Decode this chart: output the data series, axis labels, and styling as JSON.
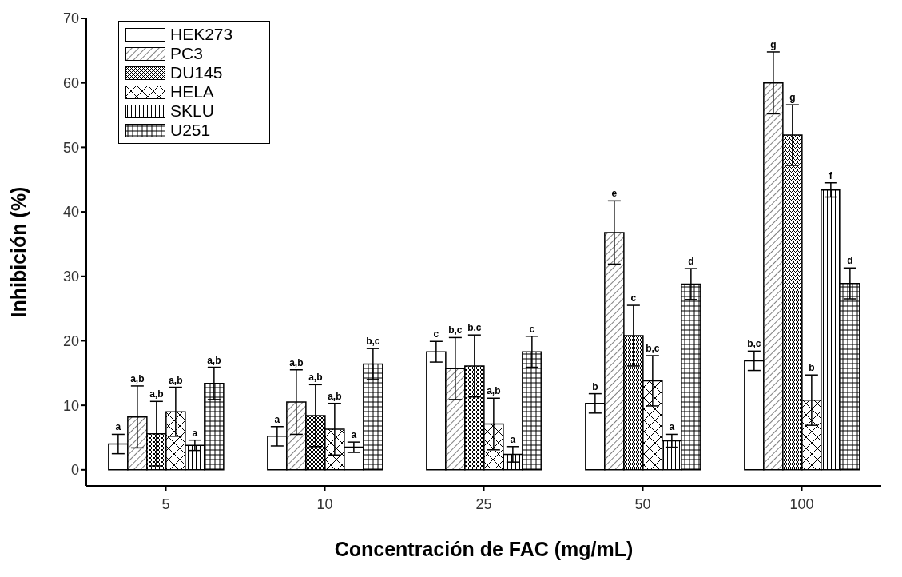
{
  "chart_data": {
    "type": "bar",
    "xlabel": "Concentración de FAC  (mg/mL)",
    "ylabel": "Inhibición (%)",
    "categories": [
      "5",
      "10",
      "25",
      "50",
      "100"
    ],
    "series": [
      {
        "name": "HEK273",
        "color": "#000000",
        "values": [
          4,
          5.2,
          18.3,
          10.3,
          16.9
        ],
        "errors": [
          1.5,
          1.5,
          1.6,
          1.5,
          1.5
        ]
      },
      {
        "name": "PC3",
        "color": "#000000",
        "values": [
          8.2,
          10.5,
          15.7,
          36.8,
          60
        ],
        "errors": [
          4.8,
          5,
          4.8,
          4.9,
          4.8
        ]
      },
      {
        "name": "DU145",
        "color": "#000000",
        "values": [
          5.6,
          8.4,
          16.1,
          20.8,
          51.9
        ],
        "errors": [
          5,
          4.8,
          4.8,
          4.7,
          4.7
        ]
      },
      {
        "name": "HELA",
        "color": "#000000",
        "values": [
          9,
          6.3,
          7.1,
          13.8,
          10.8
        ],
        "errors": [
          3.8,
          4,
          4,
          3.9,
          3.9
        ]
      },
      {
        "name": "SKLU",
        "color": "#000000",
        "values": [
          3.8,
          3.5,
          2.4,
          4.5,
          43.4
        ],
        "errors": [
          0.8,
          0.8,
          1.2,
          1,
          1.1
        ]
      },
      {
        "name": "U251",
        "color": "#000000",
        "values": [
          13.4,
          16.4,
          18.3,
          28.8,
          28.9
        ],
        "errors": [
          2.5,
          2.4,
          2.4,
          2.4,
          2.4
        ]
      }
    ],
    "ylim": [
      -2.5,
      70
    ],
    "yticks": [
      0,
      10,
      20,
      30,
      40,
      50,
      60,
      70
    ],
    "legend": "top left",
    "annotations": [
      "a",
      "a,b",
      "a,b",
      "a,b",
      "a",
      "a,b",
      "a",
      "a,b",
      "a,b",
      "a,b",
      "a",
      "b,c",
      "c",
      "b,c",
      "b,c",
      "a,b",
      "a",
      "c",
      "b",
      "e",
      "c",
      "b,c",
      "a",
      "d",
      "b,c",
      "g",
      "g",
      "b",
      "f",
      "d"
    ]
  }
}
